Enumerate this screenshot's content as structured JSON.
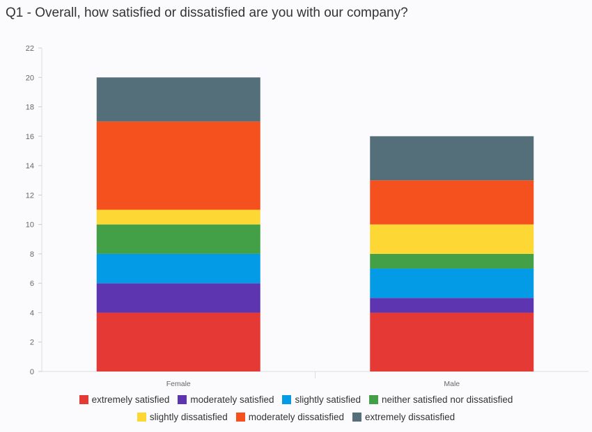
{
  "chart_data": {
    "type": "bar",
    "stacked": true,
    "title": "Q1 - Overall, how satisfied or dissatisfied are you with our company?",
    "xlabel": "",
    "ylabel": "",
    "categories": [
      "Female",
      "Male"
    ],
    "ylim": [
      0,
      22
    ],
    "yticks": [
      0,
      2,
      4,
      6,
      8,
      10,
      12,
      14,
      16,
      18,
      20,
      22
    ],
    "grid": false,
    "legend_position": "bottom",
    "series": [
      {
        "name": "extremely satisfied",
        "color": "#e53935",
        "values": [
          4,
          4
        ]
      },
      {
        "name": "moderately satisfied",
        "color": "#5e35b1",
        "values": [
          2,
          1
        ]
      },
      {
        "name": "slightly satisfied",
        "color": "#039be5",
        "values": [
          2,
          2
        ]
      },
      {
        "name": "neither satisfied nor dissatisfied",
        "color": "#43a047",
        "values": [
          2,
          1
        ]
      },
      {
        "name": "slightly dissatisfied",
        "color": "#fdd835",
        "values": [
          1,
          2
        ]
      },
      {
        "name": "moderately dissatisfied",
        "color": "#f4511e",
        "values": [
          6,
          3
        ]
      },
      {
        "name": "extremely dissatisfied",
        "color": "#546e7a",
        "values": [
          3,
          3
        ]
      }
    ]
  }
}
